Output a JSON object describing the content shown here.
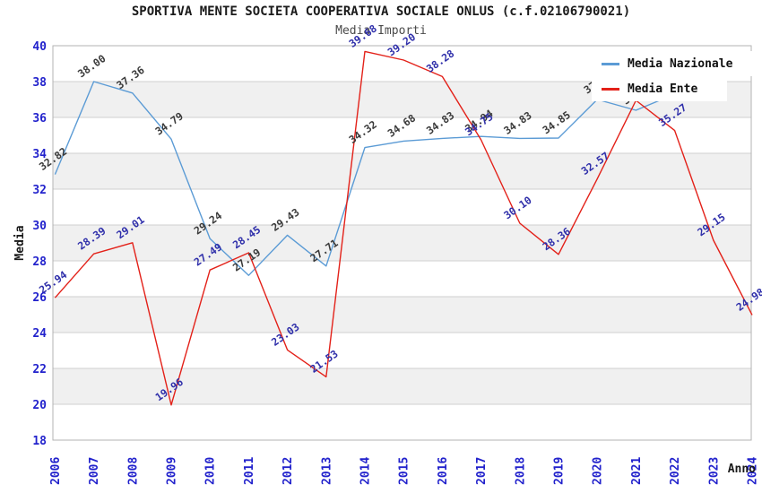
{
  "title": "SPORTIVA MENTE SOCIETA COOPERATIVA SOCIALE ONLUS (c.f.02106790021)",
  "subtitle": "Media Importi",
  "axes": {
    "y_label": "Media",
    "x_label": "Anno",
    "y_ticks": [
      18,
      20,
      22,
      24,
      26,
      28,
      30,
      32,
      34,
      36,
      38,
      40
    ],
    "tick_color": "#2222cc"
  },
  "colors": {
    "background": "#ffffff",
    "band_fill": "#f0f0f0",
    "gridline": "#cfcfcf",
    "plot_border": "#b3b3b3",
    "nazionale_line": "#5b9bd5",
    "ente_line": "#e32119",
    "nazionale_label": "#3a3a3a",
    "ente_label": "#2f2faa"
  },
  "chart_data": {
    "type": "line",
    "title": "SPORTIVA MENTE SOCIETA COOPERATIVA SOCIALE ONLUS (c.f.02106790021)",
    "subtitle": "Media Importi",
    "xlabel": "Anno",
    "ylabel": "Media",
    "ylim": [
      18,
      40
    ],
    "grid": "horizontal",
    "legend_position": "top-right",
    "gray_bands": [
      [
        36,
        38
      ],
      [
        32,
        34
      ],
      [
        28,
        30
      ],
      [
        24,
        26
      ],
      [
        20,
        22
      ]
    ],
    "x": [
      "2006",
      "2007",
      "2008",
      "2009",
      "2010",
      "2011",
      "2012",
      "2013",
      "2014",
      "2015",
      "2016",
      "2017",
      "2018",
      "2019",
      "2020",
      "2021",
      "2022",
      "2023",
      "2024"
    ],
    "series": [
      {
        "name": "Media Nazionale",
        "color": "#5b9bd5",
        "label_color": "#3a3a3a",
        "values": [
          32.82,
          38.0,
          37.36,
          34.79,
          29.24,
          27.19,
          29.43,
          27.71,
          34.32,
          34.68,
          34.83,
          34.94,
          34.83,
          34.85,
          37.0,
          36.4,
          37.3,
          null,
          null
        ],
        "labels": [
          "32.82",
          "38.00",
          "37.36",
          "34.79",
          "29.24",
          "27.19",
          "29.43",
          "27.71",
          "34.32",
          "34.68",
          "34.83",
          "34.94",
          "34.83",
          "34.85",
          "37.0",
          "36.4",
          "",
          "",
          ""
        ]
      },
      {
        "name": "Media Ente",
        "color": "#e32119",
        "label_color": "#2f2faa",
        "values": [
          25.94,
          28.39,
          29.01,
          19.96,
          27.49,
          28.45,
          23.03,
          21.53,
          39.68,
          39.2,
          38.28,
          34.75,
          30.1,
          28.36,
          32.57,
          36.95,
          35.27,
          29.15,
          24.98
        ],
        "labels": [
          "25.94",
          "28.39",
          "29.01",
          "19.96",
          "27.49",
          "28.45",
          "23.03",
          "21.53",
          "39.68",
          "39.20",
          "38.28",
          "34.75",
          "30.10",
          "28.36",
          "32.57",
          "",
          "35.27",
          "29.15",
          "24.98"
        ]
      }
    ]
  }
}
